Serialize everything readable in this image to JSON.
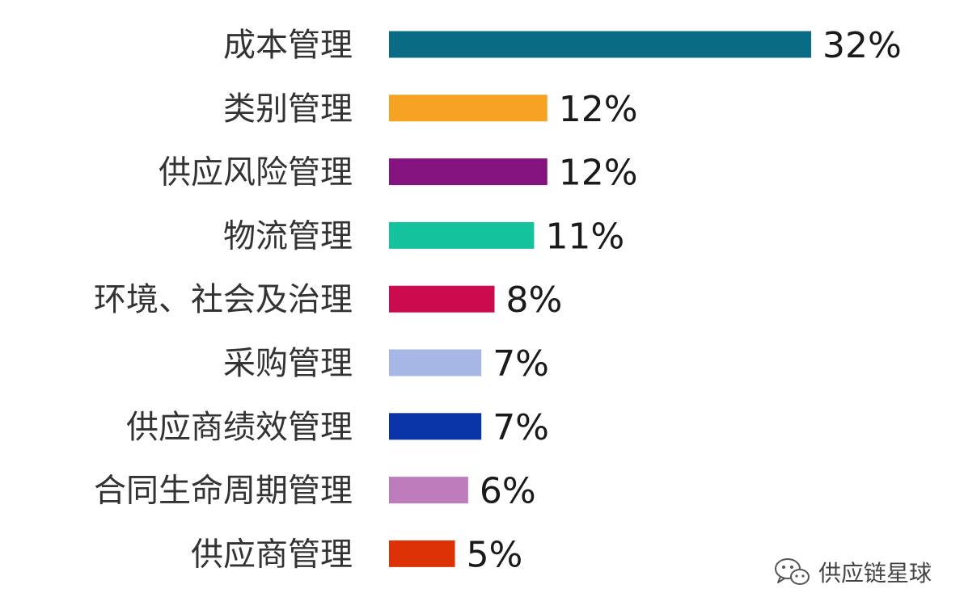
{
  "chart_data": {
    "type": "bar",
    "orientation": "horizontal",
    "categories": [
      "成本管理",
      "类别管理",
      "供应风险管理",
      "物流管理",
      "环境、社会及治理",
      "采购管理",
      "供应商绩效管理",
      "合同生命周期管理",
      "供应商管理"
    ],
    "values": [
      32,
      12,
      12,
      11,
      8,
      7,
      7,
      6,
      5
    ],
    "value_labels": [
      "32%",
      "12%",
      "12%",
      "11%",
      "8%",
      "7%",
      "7%",
      "6%",
      "5%"
    ],
    "colors": [
      "#0a6b85",
      "#f6a324",
      "#85137f",
      "#14c39e",
      "#cc0a4e",
      "#a6b6e5",
      "#0a35a8",
      "#be7cbc",
      "#dd3206"
    ],
    "unit": "%",
    "title": "",
    "xlabel": "",
    "ylabel": "",
    "grid": false,
    "legend": false
  },
  "watermark": {
    "icon": "wechat-icon",
    "text": "供应链星球"
  }
}
